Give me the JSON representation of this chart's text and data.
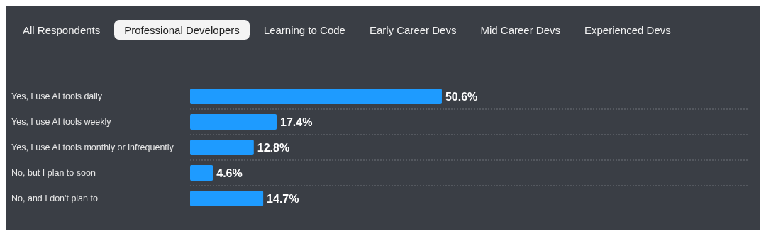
{
  "chart_data": {
    "type": "bar",
    "orientation": "horizontal",
    "annotations": [
      "All Respondents",
      "Professional Developers",
      "Learning to Code",
      "Early Career Devs",
      "Mid Career Devs",
      "Experienced Devs"
    ],
    "categories": [
      "Yes, I use AI tools daily",
      "Yes, I use AI tools weekly",
      "Yes, I use AI tools monthly or infrequently",
      "No, but I plan to soon",
      "No, and I don't plan to"
    ],
    "values": [
      50.6,
      17.4,
      12.8,
      4.6,
      14.7
    ],
    "value_labels": [
      "50.6%",
      "17.4%",
      "12.8%",
      "4.6%",
      "14.7%"
    ],
    "color": "#1e9bff",
    "grid": "y"
  }
}
